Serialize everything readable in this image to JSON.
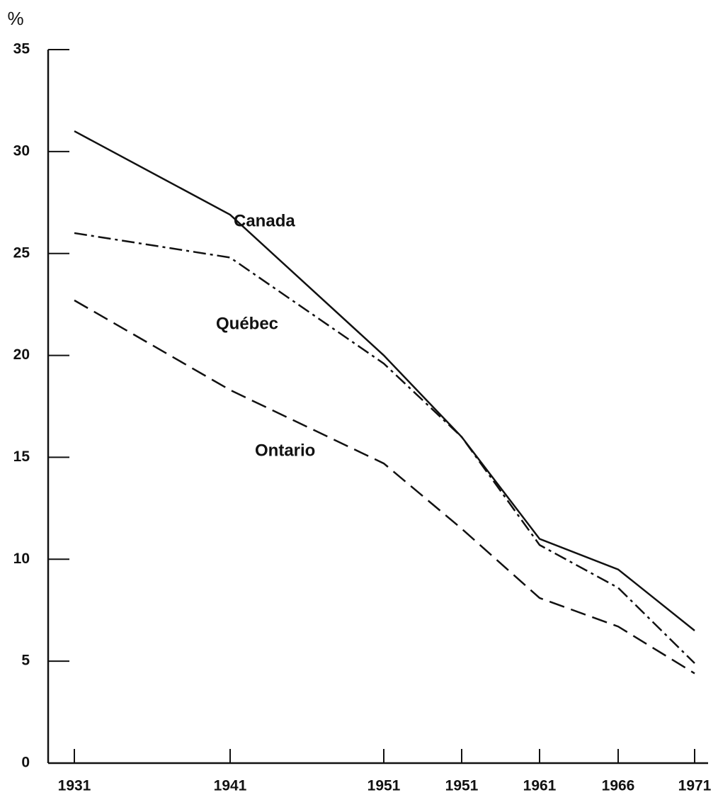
{
  "chart_data": {
    "type": "line",
    "y_axis_label": "%",
    "categories": [
      "1931",
      "1941",
      "1951",
      "1951",
      "1961",
      "1966",
      "1971"
    ],
    "series": [
      {
        "name": "Canada",
        "color": "#111111",
        "dash": "solid",
        "values": [
          31.0,
          26.9,
          20.0,
          16.0,
          11.0,
          9.5,
          6.5
        ]
      },
      {
        "name": "Québec",
        "color": "#111111",
        "dash": "dashdot",
        "values": [
          26.0,
          24.8,
          19.6,
          16.0,
          10.7,
          8.6,
          4.9
        ]
      },
      {
        "name": "Ontario",
        "color": "#111111",
        "dash": "dashed",
        "values": [
          22.7,
          18.3,
          14.7,
          11.5,
          8.1,
          6.7,
          4.4
        ]
      }
    ],
    "ylim": [
      0,
      35
    ],
    "yticks": [
      0,
      5,
      10,
      15,
      20,
      25,
      30,
      35
    ]
  }
}
